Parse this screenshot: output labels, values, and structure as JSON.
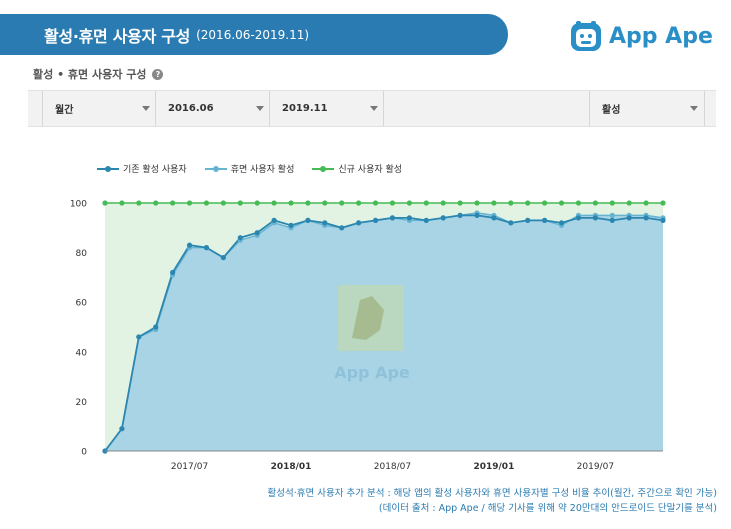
{
  "header": {
    "title": "활성·휴면 사용자 구성",
    "subtitle": "(2016.06-2019.11)"
  },
  "logo": {
    "text": "App Ape"
  },
  "section": {
    "heading": "활성 • 휴면 사용자 구성",
    "help_icon": "question-icon"
  },
  "filters": [
    {
      "label": "월간"
    },
    {
      "label": "2016.06"
    },
    {
      "label": "2019.11"
    },
    {
      "label": ""
    },
    {
      "label": "활성"
    }
  ],
  "watermark": {
    "text": "App Ape"
  },
  "footer": {
    "line1": "활성석·휴면 사용자 추가 분석 : 해당 앱의 활성 사용자와 휴면 사용자별 구성 비율 추이(월간, 주간으로 확인 가능)",
    "line2": "(데이터 출처 : App Ape / 해당 기사를 위해 약 20만대의 안드로이드 단말기를 분석)"
  },
  "colors": {
    "series1": "#2b86b0",
    "series2": "#66b3d2",
    "series3": "#44bb55",
    "area_main": "#a8d4e6",
    "area_green": "#e3f3e3",
    "accent": "#2a7bb1"
  },
  "chart_data": {
    "type": "area",
    "ylim": [
      0,
      100
    ],
    "yticks": [
      0,
      20,
      40,
      60,
      80,
      100
    ],
    "xlabels": [
      {
        "text": "2017/07",
        "index": 5,
        "bold": false
      },
      {
        "text": "2018/01",
        "index": 11,
        "bold": true
      },
      {
        "text": "2018/07",
        "index": 17,
        "bold": false
      },
      {
        "text": "2019/01",
        "index": 23,
        "bold": true
      },
      {
        "text": "2019/07",
        "index": 29,
        "bold": false
      }
    ],
    "grid": true,
    "legend_position": "top-left",
    "series": [
      {
        "name": "기존 활성 사용자",
        "values": [
          0,
          9,
          46,
          50,
          72,
          83,
          82,
          78,
          86,
          88,
          93,
          91,
          93,
          92,
          90,
          92,
          93,
          94,
          94,
          93,
          94,
          95,
          95,
          94,
          92,
          93,
          93,
          92,
          94,
          94,
          93,
          94,
          94,
          93
        ]
      },
      {
        "name": "휴면 사용자 활성",
        "values": [
          0,
          9,
          46,
          49,
          71,
          82,
          82,
          78,
          85,
          87,
          92,
          90,
          93,
          91,
          90,
          92,
          93,
          94,
          93,
          93,
          94,
          95,
          96,
          95,
          92,
          93,
          93,
          91,
          95,
          95,
          95,
          95,
          95,
          94
        ]
      },
      {
        "name": "신규 사용자 활성",
        "values": [
          100,
          100,
          100,
          100,
          100,
          100,
          100,
          100,
          100,
          100,
          100,
          100,
          100,
          100,
          100,
          100,
          100,
          100,
          100,
          100,
          100,
          100,
          100,
          100,
          100,
          100,
          100,
          100,
          100,
          100,
          100,
          100,
          100,
          100
        ]
      }
    ]
  }
}
